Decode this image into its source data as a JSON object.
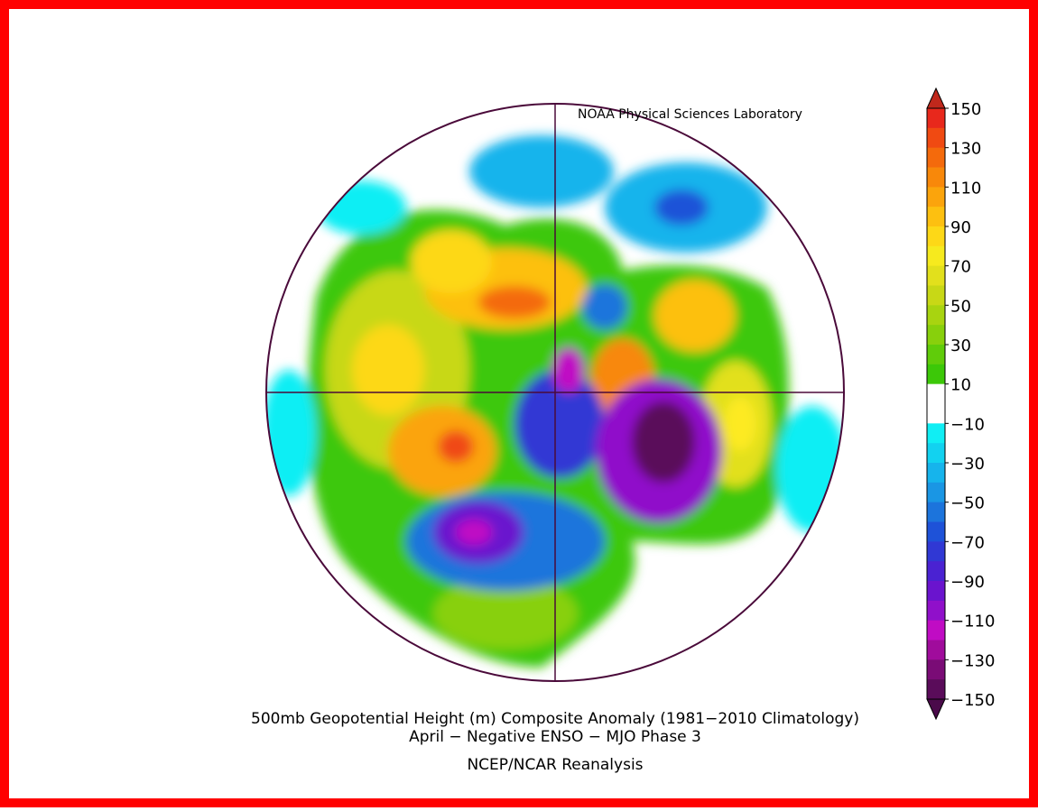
{
  "credit": "NOAA Physical Sciences Laboratory",
  "title": [
    "500mb Geopotential Height (m) Composite Anomaly (1981−2010 Climatology)",
    "April − Negative ENSO − MJO Phase 3"
  ],
  "source": "NCEP/NCAR Reanalysis",
  "colorbar": {
    "lim": [
      -150,
      150
    ],
    "ticks": [
      150,
      130,
      110,
      90,
      70,
      50,
      30,
      10,
      {
        "value": -10,
        "label": "−10"
      },
      {
        "value": -30,
        "label": "−30"
      },
      {
        "value": -50,
        "label": "−50"
      },
      {
        "value": -70,
        "label": "−70"
      },
      {
        "value": -90,
        "label": "−90"
      },
      {
        "value": -110,
        "label": "−110"
      },
      {
        "value": -130,
        "label": "−130"
      },
      {
        "value": -150,
        "label": "−150"
      }
    ],
    "over_color": "#c0281c",
    "under_color": "#4a0a4a",
    "colors": [
      "#e8281c",
      "#f04a12",
      "#f46a0c",
      "#f8880a",
      "#fba40c",
      "#fdc010",
      "#fdd817",
      "#f6ea1e",
      "#e2e01c",
      "#c8d816",
      "#a8d410",
      "#88d00c",
      "#60cc0a",
      "#3cc808",
      "#ffffff",
      "#ffffff",
      "#10eef4",
      "#12d2f0",
      "#16b4ec",
      "#1a96e4",
      "#1c74dc",
      "#1e52d8",
      "#3038d4",
      "#4a22d2",
      "#6a14ce",
      "#9010ca",
      "#c00cc4",
      "#a00c9c",
      "#7a0c76",
      "#5a0c5a"
    ]
  }
}
